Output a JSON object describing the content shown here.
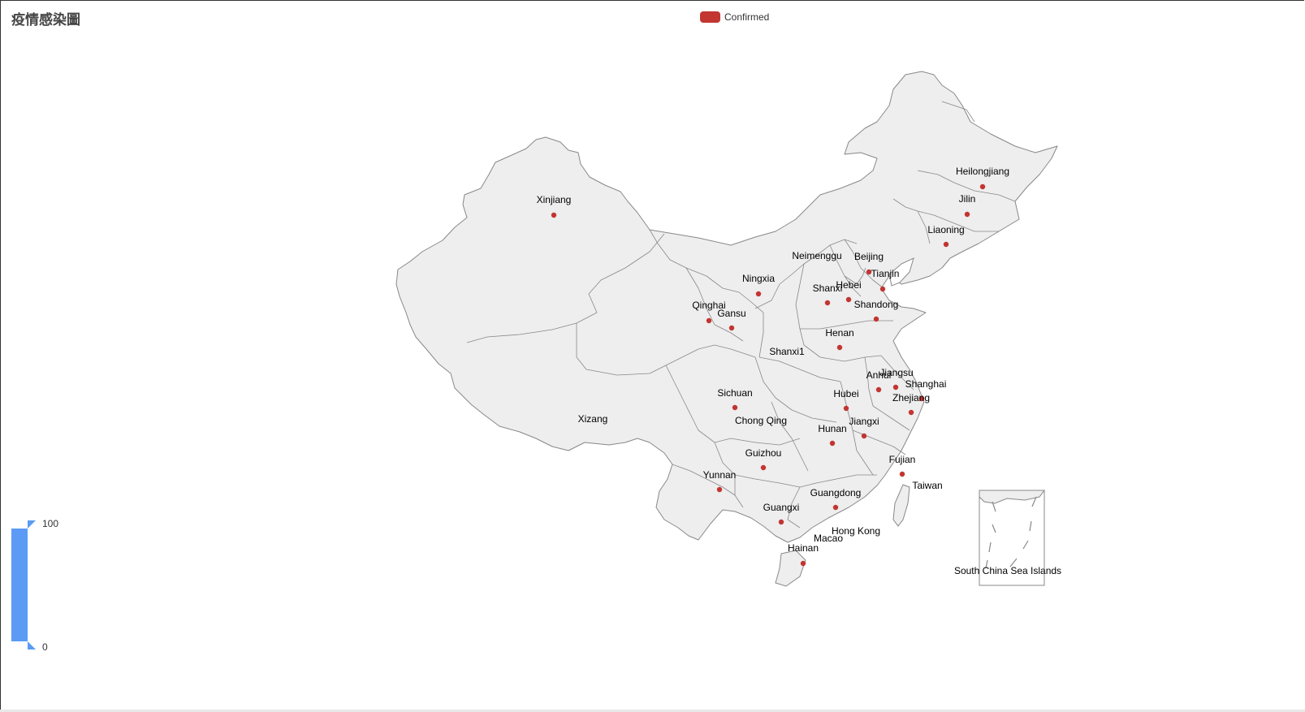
{
  "title": "疫情感染圖",
  "legend": {
    "label": "Confirmed",
    "color": "#c23531"
  },
  "visual_map": {
    "max": "100",
    "min": "0",
    "color": "#5b9bf5"
  },
  "map": {
    "land_fill": "#eeeeee",
    "border_color": "#888888",
    "point_color": "#c23531",
    "regions": [
      {
        "name": "Xinjiang",
        "has_point": true
      },
      {
        "name": "Xizang",
        "has_point": false
      },
      {
        "name": "Qinghai",
        "has_point": true
      },
      {
        "name": "Gansu",
        "has_point": true
      },
      {
        "name": "Ningxia",
        "has_point": true
      },
      {
        "name": "Neimenggu",
        "has_point": false
      },
      {
        "name": "Heilongjiang",
        "has_point": true
      },
      {
        "name": "Jilin",
        "has_point": true
      },
      {
        "name": "Liaoning",
        "has_point": true
      },
      {
        "name": "Beijing",
        "has_point": true
      },
      {
        "name": "Tianjin",
        "has_point": true
      },
      {
        "name": "Hebei",
        "has_point": true
      },
      {
        "name": "Shanxi",
        "has_point": true
      },
      {
        "name": "Shandong",
        "has_point": true
      },
      {
        "name": "Henan",
        "has_point": true
      },
      {
        "name": "Shanxi1",
        "has_point": false
      },
      {
        "name": "Jiangsu",
        "has_point": true
      },
      {
        "name": "Anhui",
        "has_point": true
      },
      {
        "name": "Shanghai",
        "has_point": true
      },
      {
        "name": "Zhejiang",
        "has_point": true
      },
      {
        "name": "Hubei",
        "has_point": true
      },
      {
        "name": "Sichuan",
        "has_point": true
      },
      {
        "name": "Chong Qing",
        "has_point": false
      },
      {
        "name": "Hunan",
        "has_point": true
      },
      {
        "name": "Jiangxi",
        "has_point": true
      },
      {
        "name": "Guizhou",
        "has_point": true
      },
      {
        "name": "Yunnan",
        "has_point": true
      },
      {
        "name": "Fujian",
        "has_point": true
      },
      {
        "name": "Taiwan",
        "has_point": false
      },
      {
        "name": "Guangdong",
        "has_point": true
      },
      {
        "name": "Guangxi",
        "has_point": true
      },
      {
        "name": "Hong Kong",
        "has_point": false
      },
      {
        "name": "Macao",
        "has_point": false
      },
      {
        "name": "Hainan",
        "has_point": true
      },
      {
        "name": "South China Sea Islands",
        "has_point": false
      }
    ]
  }
}
